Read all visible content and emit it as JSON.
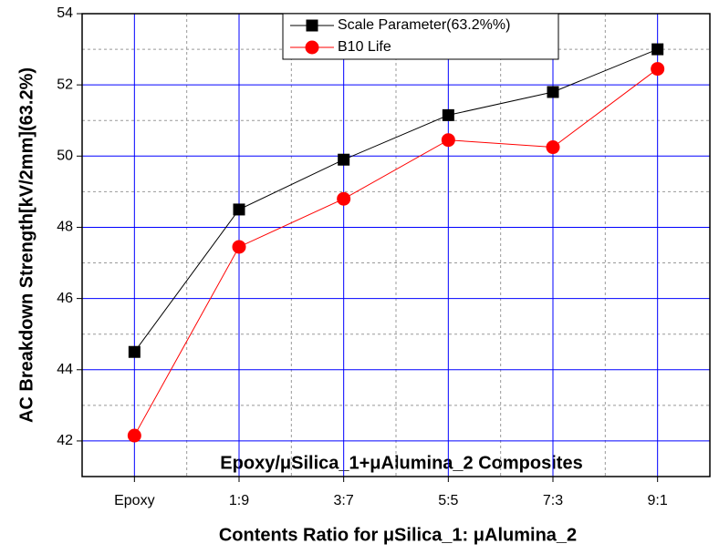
{
  "chart_data": {
    "type": "line",
    "annotation": "Epoxy/μSilica_1+μAlumina_2 Composites",
    "x_label": "Contents Ratio for μSilica_1: μAlumina_2",
    "y_label": "AC Breakdown Strength[kV/2mm](63.2%)",
    "categories": [
      "Epoxy",
      "1:9",
      "3:7",
      "5:5",
      "7:3",
      "9:1"
    ],
    "series": [
      {
        "name": "Scale Parameter(63.2%%)",
        "color": "#000000",
        "marker": "square",
        "values": [
          44.5,
          48.5,
          49.9,
          51.15,
          51.8,
          53.0
        ]
      },
      {
        "name": "B10 Life",
        "color": "#ff0000",
        "marker": "circle",
        "values": [
          42.15,
          47.45,
          48.8,
          50.45,
          50.25,
          52.45
        ]
      }
    ],
    "ylim": [
      41,
      54
    ],
    "yticks": [
      42,
      44,
      46,
      48,
      50,
      52,
      54
    ],
    "grid": true,
    "grid_color": "#0000ff",
    "legend": "upper center"
  }
}
